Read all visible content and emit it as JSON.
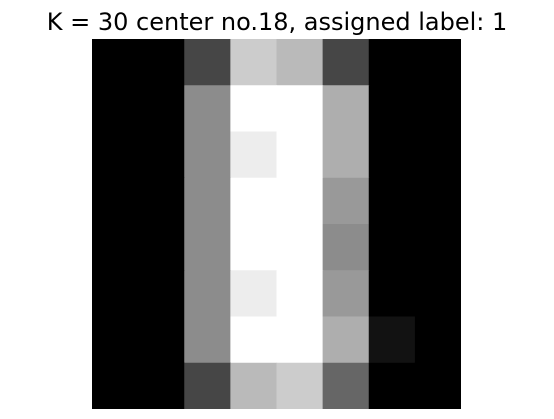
{
  "chart_data": {
    "type": "heatmap",
    "title": "K = 30 center no.18, assigned label: 1",
    "colormap": "gray",
    "value_range": [
      0,
      16
    ],
    "rows": 8,
    "cols": 8,
    "values": [
      [
        0,
        0,
        4.4,
        12.8,
        11.7,
        4.4,
        0,
        0
      ],
      [
        0,
        0,
        8.8,
        16,
        16,
        10.9,
        0,
        0
      ],
      [
        0,
        0,
        8.8,
        14.9,
        16,
        10.9,
        0,
        0
      ],
      [
        0,
        0,
        8.8,
        16,
        16,
        9.6,
        0,
        0
      ],
      [
        0,
        0,
        8.8,
        16,
        16,
        8.8,
        0,
        0
      ],
      [
        0,
        0,
        8.8,
        14.9,
        16,
        9.6,
        0,
        0
      ],
      [
        0,
        0,
        8.8,
        16,
        16,
        10.9,
        1.1,
        0
      ],
      [
        0,
        0,
        4.4,
        11.7,
        12.8,
        6.4,
        0,
        0
      ]
    ],
    "xlabel": "",
    "ylabel": "",
    "axes_visible": false,
    "grid": false
  }
}
